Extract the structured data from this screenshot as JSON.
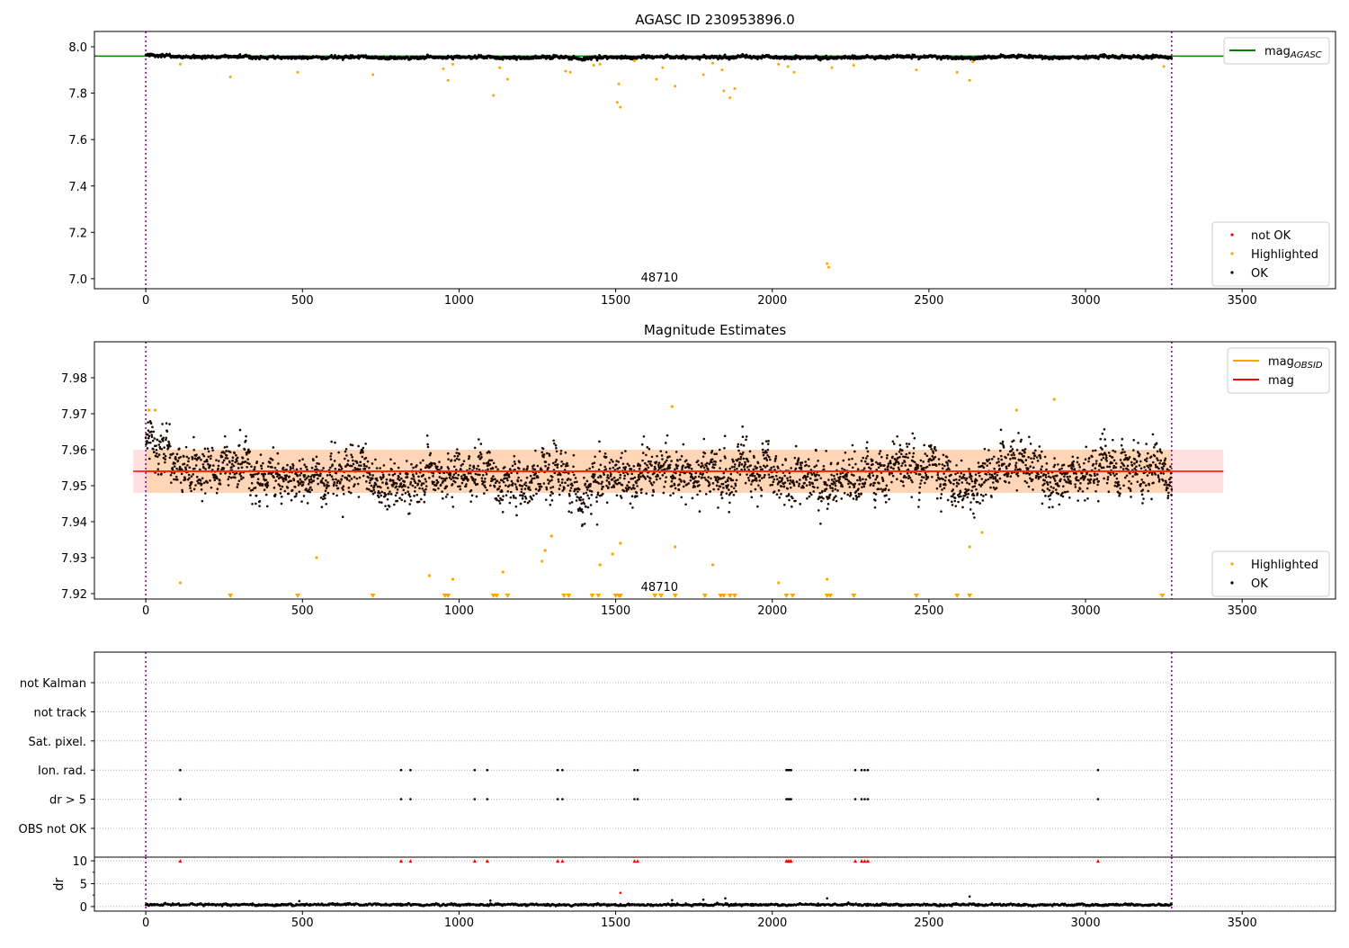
{
  "chart_data": [
    {
      "type": "scatter",
      "title": "AGASC ID 230953896.0",
      "xlim": [
        -164,
        3798
      ],
      "ylim": [
        6.957,
        8.066
      ],
      "xticks": [
        0,
        500,
        1000,
        1500,
        2000,
        2500,
        3000,
        3500
      ],
      "yticks": [
        "7.0",
        "7.2",
        "7.4",
        "7.6",
        "7.8",
        "8.0"
      ],
      "annotation": "48710",
      "annotation_x": 1640,
      "mag_agasc": 7.96,
      "obs_range": [
        0,
        3275
      ],
      "legend_top": [
        {
          "label": "mag",
          "sub": "AGASC",
          "color": "#008000"
        }
      ],
      "legend_bottom": [
        {
          "label": "not OK",
          "color": "#ff0000"
        },
        {
          "label": "Highlighted",
          "color": "#ffa500"
        },
        {
          "label": "OK",
          "color": "#000000"
        }
      ],
      "highlighted": [
        [
          110,
          7.925
        ],
        [
          270,
          7.87
        ],
        [
          485,
          7.89
        ],
        [
          725,
          7.88
        ],
        [
          950,
          7.905
        ],
        [
          965,
          7.855
        ],
        [
          980,
          7.925
        ],
        [
          1110,
          7.79
        ],
        [
          1130,
          7.91
        ],
        [
          1155,
          7.86
        ],
        [
          1340,
          7.895
        ],
        [
          1355,
          7.89
        ],
        [
          1430,
          7.92
        ],
        [
          1450,
          7.925
        ],
        [
          1505,
          7.76
        ],
        [
          1510,
          7.84
        ],
        [
          1515,
          7.74
        ],
        [
          1560,
          7.94
        ],
        [
          1630,
          7.86
        ],
        [
          1650,
          7.91
        ],
        [
          1690,
          7.83
        ],
        [
          1780,
          7.88
        ],
        [
          1810,
          7.93
        ],
        [
          1840,
          7.9
        ],
        [
          1845,
          7.81
        ],
        [
          1865,
          7.78
        ],
        [
          1880,
          7.82
        ],
        [
          2020,
          7.925
        ],
        [
          2050,
          7.915
        ],
        [
          2070,
          7.89
        ],
        [
          2175,
          7.065
        ],
        [
          2180,
          7.05
        ],
        [
          2190,
          7.91
        ],
        [
          2260,
          7.92
        ],
        [
          2460,
          7.9
        ],
        [
          2590,
          7.89
        ],
        [
          2630,
          7.855
        ],
        [
          2640,
          7.935
        ],
        [
          3250,
          7.915
        ]
      ]
    },
    {
      "type": "scatter",
      "title": "Magnitude Estimates",
      "xlim": [
        -164,
        3798
      ],
      "ylim": [
        7.9185,
        7.99
      ],
      "xticks": [
        0,
        500,
        1000,
        1500,
        2000,
        2500,
        3000,
        3500
      ],
      "yticks": [
        "7.92",
        "7.93",
        "7.94",
        "7.95",
        "7.96",
        "7.97",
        "7.98"
      ],
      "annotation": "48710",
      "annotation_x": 1640,
      "mag": 7.954,
      "mag_band": [
        7.948,
        7.96
      ],
      "mag_extent": [
        -40,
        3440
      ],
      "legend_top": [
        {
          "label": "mag",
          "sub": "OBSID",
          "color": "#ffa500"
        },
        {
          "label": "mag",
          "sub": "",
          "color": "#ff0000"
        }
      ],
      "legend_bottom": [
        {
          "label": "Highlighted",
          "color": "#ffa500"
        },
        {
          "label": "OK",
          "color": "#000000"
        }
      ],
      "ok_trend_step": 100,
      "ok_trend": [
        7.962,
        7.955,
        7.953,
        7.956,
        7.951,
        7.953,
        7.951,
        7.955,
        7.95,
        7.952,
        7.951,
        7.953,
        7.951,
        7.955,
        7.949,
        7.953,
        7.952,
        7.954,
        7.952,
        7.954,
        7.953,
        7.951,
        7.95,
        7.953,
        7.955,
        7.956,
        7.949,
        7.954,
        7.957,
        7.952,
        7.953,
        7.956,
        7.954,
        7.955
      ],
      "ok_noise_sd": 0.0045,
      "highlighted": [
        [
          10,
          7.971
        ],
        [
          30,
          7.971
        ],
        [
          110,
          7.923
        ],
        [
          545,
          7.93
        ],
        [
          905,
          7.925
        ],
        [
          980,
          7.924
        ],
        [
          1140,
          7.926
        ],
        [
          1265,
          7.929
        ],
        [
          1275,
          7.932
        ],
        [
          1295,
          7.936
        ],
        [
          1450,
          7.928
        ],
        [
          1490,
          7.931
        ],
        [
          1515,
          7.934
        ],
        [
          1680,
          7.972
        ],
        [
          1690,
          7.933
        ],
        [
          1810,
          7.928
        ],
        [
          2020,
          7.923
        ],
        [
          2175,
          7.924
        ],
        [
          2630,
          7.933
        ],
        [
          2670,
          7.937
        ],
        [
          2780,
          7.971
        ],
        [
          2900,
          7.974
        ]
      ],
      "highlighted_below_range_x": [
        270,
        485,
        725,
        955,
        965,
        1110,
        1120,
        1155,
        1335,
        1350,
        1425,
        1445,
        1500,
        1510,
        1515,
        1625,
        1645,
        1690,
        1785,
        1835,
        1845,
        1865,
        1880,
        2045,
        2065,
        2175,
        2185,
        2260,
        2460,
        2590,
        2630,
        3245
      ]
    },
    {
      "type": "scatter",
      "categories": [
        "OBS not OK",
        "dr > 5",
        "Ion. rad.",
        "Sat. pixel.",
        "not track",
        "not Kalman"
      ],
      "flag_events": {
        "dr > 5": [
          110,
          815,
          845,
          1050,
          1090,
          1315,
          1330,
          1560,
          1570,
          2045,
          2050,
          2055,
          2060,
          2265,
          2285,
          2295,
          2305,
          3040
        ],
        "Ion. rad.": [
          110,
          815,
          845,
          1050,
          1090,
          1315,
          1330,
          1560,
          1570,
          2045,
          2050,
          2055,
          2060,
          2265,
          2285,
          2295,
          2305,
          3040
        ]
      }
    },
    {
      "type": "scatter",
      "ylabel": "dr",
      "ylim": [
        -1,
        10.8
      ],
      "yticks": [
        "0",
        "5",
        "10"
      ],
      "xticks": [
        0,
        500,
        1000,
        1500,
        2000,
        2500,
        3000,
        3500
      ],
      "clipped_value": 10,
      "dr_typical": 0.4,
      "dr_spikes": [
        [
          1515,
          3.0
        ],
        [
          1780,
          1.5
        ],
        [
          1850,
          1.8
        ],
        [
          2175,
          1.8
        ],
        [
          2630,
          2.2
        ],
        [
          490,
          1.2
        ],
        [
          1100,
          1.3
        ],
        [
          1680,
          1.4
        ]
      ]
    }
  ]
}
